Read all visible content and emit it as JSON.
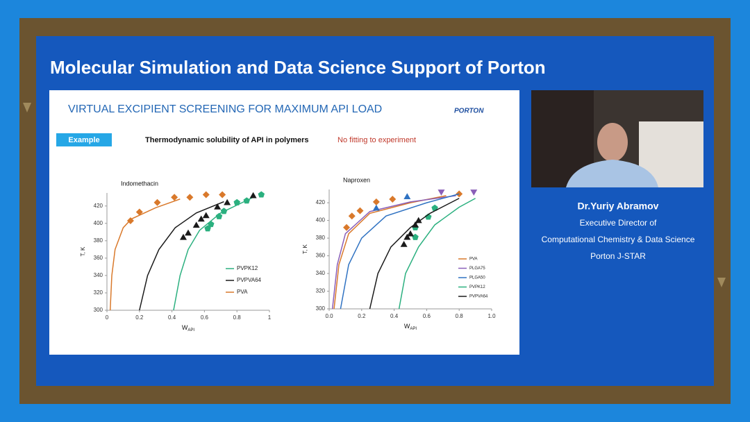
{
  "header": {
    "title": "Molecular Simulation and Data Science Support of Porton"
  },
  "slide": {
    "title": "VIRTUAL EXCIPIENT SCREENING FOR MAXIMUM API LOAD",
    "logo": "PORTON",
    "badge": "Example",
    "subtitle": "Thermodynamic solubility of API in polymers",
    "note": "No fitting to experiment",
    "charts": [
      {
        "type": "scatter-line",
        "title": "Indomethacin",
        "xlabel": "W",
        "xlabel_sub": "API",
        "ylabel": "T, K",
        "xlim": [
          0,
          1
        ],
        "xticks": [
          0,
          0.2,
          0.4,
          0.6,
          0.8,
          1
        ],
        "ylim": [
          300,
          435
        ],
        "yticks": [
          300,
          320,
          340,
          360,
          380,
          400,
          420
        ],
        "legend": "lower right",
        "series": [
          {
            "name": "PVPK12",
            "color": "#2bb07f",
            "marker": "pentagon",
            "line": {
              "x": [
                0.41,
                0.45,
                0.5,
                0.57,
                0.7,
                0.9
              ],
              "y": [
                300,
                340,
                370,
                392,
                412,
                430
              ]
            },
            "points": {
              "x": [
                0.62,
                0.64,
                0.69,
                0.72,
                0.8,
                0.86,
                0.95
              ],
              "y": [
                394,
                399,
                408,
                414,
                424,
                426,
                433
              ]
            }
          },
          {
            "name": "PVPVA64",
            "color": "#1a1a1a",
            "marker": "triangle",
            "line": {
              "x": [
                0.2,
                0.25,
                0.32,
                0.42,
                0.55,
                0.72
              ],
              "y": [
                300,
                340,
                370,
                395,
                412,
                425
              ]
            },
            "points": {
              "x": [
                0.47,
                0.5,
                0.55,
                0.58,
                0.61,
                0.68,
                0.74,
                0.9
              ],
              "y": [
                384,
                389,
                398,
                405,
                409,
                419,
                424,
                432
              ]
            }
          },
          {
            "name": "PVA",
            "color": "#d9792b",
            "marker": "diamond",
            "line": {
              "x": [
                0.02,
                0.03,
                0.05,
                0.1,
                0.15,
                0.3,
                0.45
              ],
              "y": [
                300,
                340,
                370,
                395,
                405,
                418,
                428
              ]
            },
            "points": {
              "x": [
                0.145,
                0.2,
                0.31,
                0.415,
                0.51,
                0.61,
                0.71
              ],
              "y": [
                403,
                413,
                424,
                430,
                430,
                433,
                433
              ]
            }
          }
        ]
      },
      {
        "type": "scatter-line",
        "title": "Naproxen",
        "xlabel": "W",
        "xlabel_sub": "API",
        "ylabel": "T, K",
        "xlim": [
          0,
          1
        ],
        "xticks": [
          {
            "value": 0,
            "label": "0.0"
          },
          0.2,
          0.4,
          0.6,
          0.8,
          {
            "value": 1,
            "label": "1.0"
          }
        ],
        "ylim": [
          300,
          435
        ],
        "yticks": [
          300,
          320,
          340,
          360,
          380,
          400,
          420
        ],
        "legend": "lower right",
        "series": [
          {
            "name": "PVA",
            "color": "#d9792b",
            "marker": "diamond",
            "line": {
              "x": [
                0.03,
                0.06,
                0.12,
                0.25,
                0.5,
                0.72
              ],
              "y": [
                300,
                350,
                385,
                408,
                420,
                428
              ]
            },
            "points": {
              "x": [
                0.107,
                0.14,
                0.19,
                0.29,
                0.39,
                0.8
              ],
              "y": [
                392,
                405,
                411,
                421,
                424,
                430
              ]
            }
          },
          {
            "name": "PLGA75",
            "color": "#8a5fb8",
            "marker": "triangle-down",
            "line": {
              "x": [
                0.02,
                0.05,
                0.1,
                0.25,
                0.5,
                0.78
              ],
              "y": [
                300,
                350,
                385,
                410,
                421,
                428
              ]
            },
            "points": {
              "x": [
                0.69,
                0.89
              ],
              "y": [
                432,
                432
              ]
            }
          },
          {
            "name": "PLGA50",
            "color": "#2f72c2",
            "marker": "triangle",
            "line": {
              "x": [
                0.07,
                0.12,
                0.2,
                0.35,
                0.6,
                0.8
              ],
              "y": [
                300,
                350,
                380,
                405,
                420,
                430
              ]
            },
            "points": {
              "x": [
                0.29,
                0.48
              ],
              "y": [
                414,
                427
              ]
            }
          },
          {
            "name": "PVPK12",
            "color": "#2bb07f",
            "marker": "pentagon",
            "line": {
              "x": [
                0.43,
                0.47,
                0.55,
                0.65,
                0.8,
                0.9
              ],
              "y": [
                300,
                340,
                370,
                395,
                415,
                425
              ]
            },
            "points": {
              "x": [
                0.53,
                0.53,
                0.61,
                0.65
              ],
              "y": [
                381,
                392,
                404,
                414
              ]
            }
          },
          {
            "name": "PVPVA64",
            "color": "#1a1a1a",
            "marker": "triangle",
            "line": {
              "x": [
                0.25,
                0.3,
                0.38,
                0.5,
                0.62,
                0.8
              ],
              "y": [
                300,
                340,
                370,
                392,
                408,
                425
              ]
            },
            "points": {
              "x": [
                0.46,
                0.48,
                0.5,
                0.53,
                0.55
              ],
              "y": [
                373,
                381,
                385,
                395,
                400
              ]
            }
          }
        ]
      }
    ]
  },
  "speaker": {
    "name": "Dr.Yuriy Abramov",
    "lines": [
      "Executive Director of",
      "Computational Chemistry & Data Science",
      "Porton J-STAR"
    ]
  }
}
